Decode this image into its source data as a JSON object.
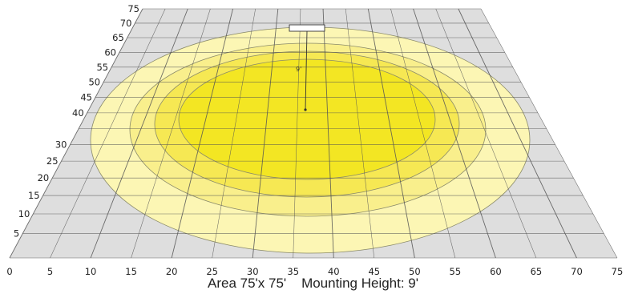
{
  "diagram": {
    "area_label": "Area 75'x 75'",
    "mounting_label": "Mounting Height: 9'",
    "height_marker": "9'",
    "x_ticks": [
      "0",
      "5",
      "10",
      "15",
      "20",
      "25",
      "30",
      "35",
      "40",
      "45",
      "50",
      "55",
      "60",
      "65",
      "70",
      "75"
    ],
    "y_ticks": [
      "5",
      "10",
      "15",
      "20",
      "25",
      "30",
      "40",
      "45",
      "50",
      "55",
      "60",
      "65",
      "70",
      "75"
    ],
    "contour_colors": [
      "#fdfbd8",
      "#fcf6b4",
      "#f9ef8c",
      "#f6e853",
      "#f3e623"
    ],
    "floor_color": "#dedede",
    "grid_color": "#555555"
  }
}
